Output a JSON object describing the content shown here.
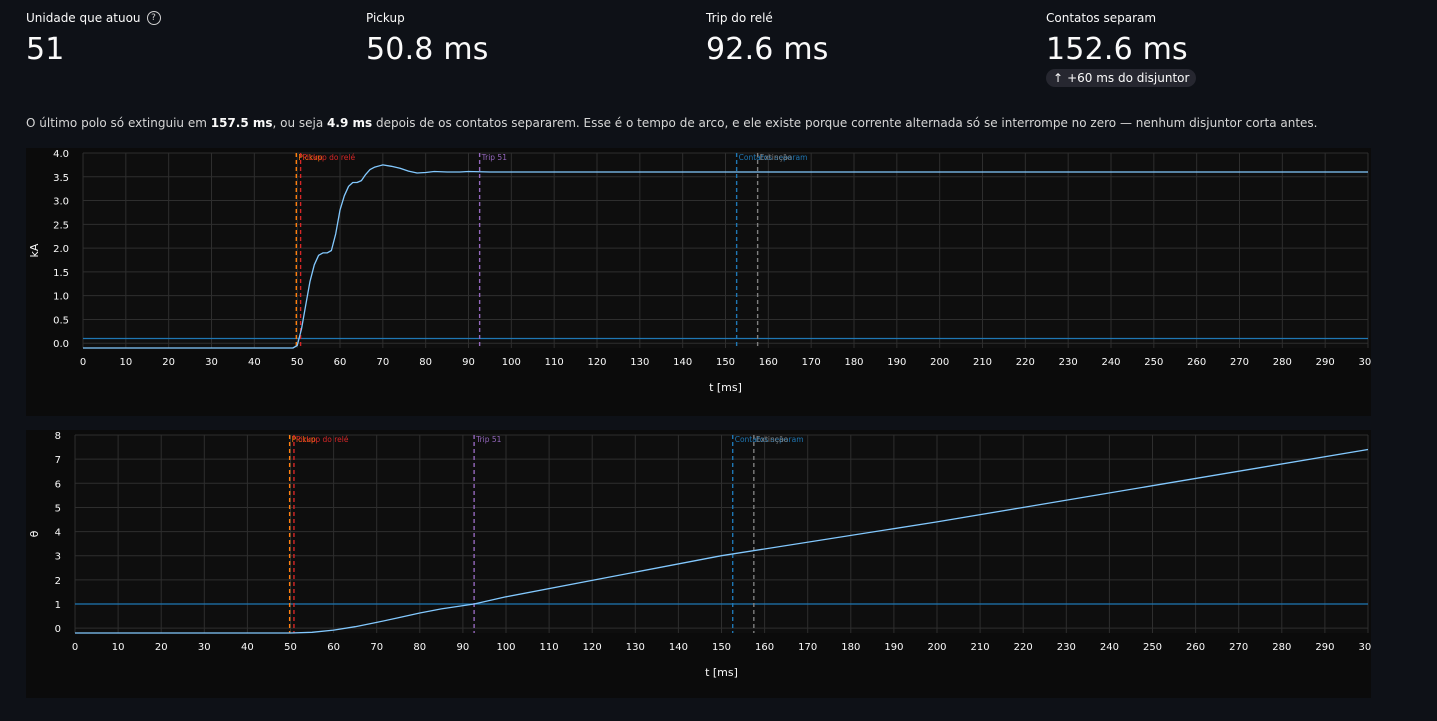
{
  "metrics": [
    {
      "label": "Unidade que atuou",
      "value": "51",
      "help": "?"
    },
    {
      "label": "Pickup",
      "value": "50.8 ms"
    },
    {
      "label": "Trip do relé",
      "value": "92.6 ms"
    },
    {
      "label": "Contatos separam",
      "value": "152.6 ms",
      "delta": "+60 ms do disjuntor"
    }
  ],
  "note": {
    "p1": "O último polo só extinguiu em ",
    "b1": "157.5 ms",
    "p2": ", ou seja ",
    "b2": "4.9 ms",
    "p3": " depois de os contatos separarem. Esse é o tempo de arco, e ele existe porque corrente alternada só se interrompe no zero — nenhum disjuntor corta antes."
  },
  "colors": {
    "trace": "#83c9ff",
    "threshold": "#1f77b4",
    "pickup": "#ff7f0e",
    "relay_pickup": "#d62728",
    "trip": "#9467bd",
    "contacts": "#1f77b4",
    "extinction": "#7f7f7f"
  },
  "chart_data": [
    {
      "type": "line",
      "xlabel": "t [ms]",
      "ylabel": "kA",
      "xlim": [
        0,
        300
      ],
      "ylim": [
        -0.1,
        4.0
      ],
      "xticks": [
        0,
        10,
        20,
        30,
        40,
        50,
        60,
        70,
        80,
        90,
        100,
        110,
        120,
        130,
        140,
        150,
        160,
        170,
        180,
        190,
        200,
        210,
        220,
        230,
        240,
        250,
        260,
        270,
        280,
        290,
        300
      ],
      "yticks": [
        0.0,
        0.5,
        1.0,
        1.5,
        2.0,
        2.5,
        3.0,
        3.5,
        4.0
      ],
      "grid": true,
      "series": [
        {
          "x": [
            0,
            49,
            50,
            51,
            52,
            53,
            54,
            55,
            56,
            57,
            58,
            59,
            60,
            61,
            62,
            63,
            64,
            65,
            66,
            67,
            68,
            70,
            72,
            74,
            76,
            78,
            80,
            82,
            85,
            88,
            90,
            95,
            100,
            110,
            120,
            150,
            200,
            250,
            300
          ],
          "y": [
            -0.1,
            -0.1,
            -0.05,
            0.3,
            0.8,
            1.3,
            1.65,
            1.85,
            1.9,
            1.9,
            1.95,
            2.3,
            2.8,
            3.1,
            3.3,
            3.38,
            3.38,
            3.42,
            3.55,
            3.65,
            3.7,
            3.75,
            3.72,
            3.68,
            3.62,
            3.58,
            3.59,
            3.61,
            3.6,
            3.6,
            3.61,
            3.6,
            3.6,
            3.6,
            3.6,
            3.6,
            3.6,
            3.6,
            3.6
          ]
        }
      ],
      "hlines": [
        {
          "y": 0.1
        }
      ],
      "vlines": [
        {
          "x": 49.8,
          "label": "Pickup"
        },
        {
          "x": 50.8,
          "label": "Pickup do relé"
        },
        {
          "x": 92.6,
          "label": "Trip 51"
        },
        {
          "x": 152.6,
          "label": "Contatos separam"
        },
        {
          "x": 157.5,
          "label": "Extinção"
        }
      ]
    },
    {
      "type": "line",
      "xlabel": "t [ms]",
      "ylabel": "θ",
      "xlim": [
        0,
        300
      ],
      "ylim": [
        -0.2,
        8.0
      ],
      "xticks": [
        0,
        10,
        20,
        30,
        40,
        50,
        60,
        70,
        80,
        90,
        100,
        110,
        120,
        130,
        140,
        150,
        160,
        170,
        180,
        190,
        200,
        210,
        220,
        230,
        240,
        250,
        260,
        270,
        280,
        290,
        300
      ],
      "yticks": [
        0,
        1,
        2,
        3,
        4,
        5,
        6,
        7,
        8
      ],
      "grid": true,
      "series": [
        {
          "x": [
            0,
            50,
            55,
            60,
            65,
            70,
            75,
            80,
            85,
            92.6,
            100,
            150,
            200,
            250,
            300
          ],
          "y": [
            -0.2,
            -0.2,
            -0.17,
            -0.08,
            0.06,
            0.24,
            0.43,
            0.63,
            0.8,
            1.0,
            1.3,
            3.0,
            4.4,
            5.9,
            7.4
          ]
        }
      ],
      "hlines": [
        {
          "y": 1.0
        }
      ],
      "vlines": [
        {
          "x": 49.8,
          "label": "Pickup"
        },
        {
          "x": 50.8,
          "label": "Pickup do relé"
        },
        {
          "x": 92.6,
          "label": "Trip 51"
        },
        {
          "x": 152.6,
          "label": "Contatos separam"
        },
        {
          "x": 157.5,
          "label": "Extinção"
        }
      ]
    }
  ]
}
